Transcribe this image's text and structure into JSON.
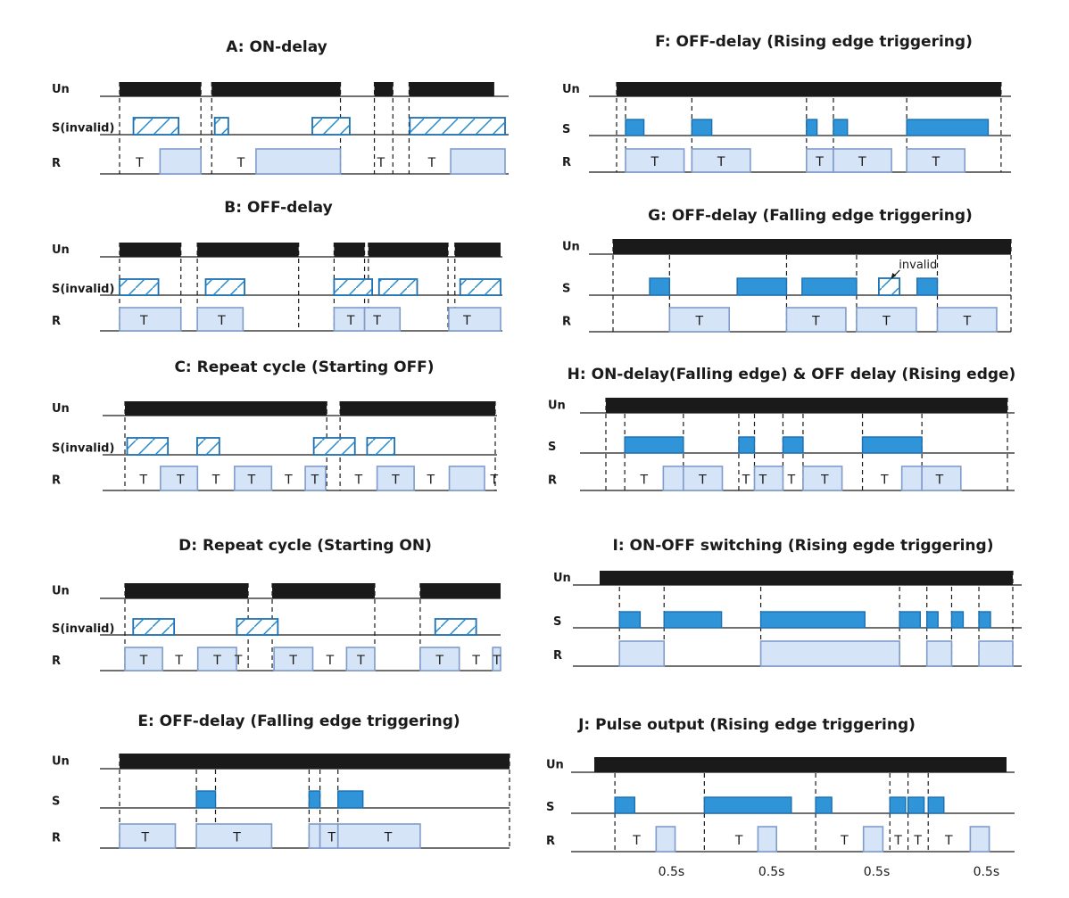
{
  "colors": {
    "un": "#1a1a1a",
    "s": "#2f95d8",
    "s_stroke": "#1d6fb0",
    "r_fill": "#d5e4f6",
    "r_stroke": "#7f9ccb",
    "hatch": "#1e88d1"
  },
  "rows": {
    "un": "Un",
    "s": "S",
    "s_invalid": "S(invalid)",
    "r": "R"
  },
  "t_label": "T",
  "panels": [
    {
      "id": "A",
      "title": "A: ON-delay",
      "s_label": "S(invalid)",
      "un": [
        [
          0.0,
          0.211
        ],
        [
          0.239,
          0.573
        ],
        [
          0.661,
          0.709
        ],
        [
          0.751,
          0.972
        ]
      ],
      "s": [
        [
          0.036,
          0.153,
          "h"
        ],
        [
          0.247,
          0.282,
          "h"
        ],
        [
          0.5,
          0.597,
          "h"
        ],
        [
          0.753,
          1.0,
          "h"
        ]
      ],
      "r": [
        [
          0.105,
          0.211
        ],
        [
          0.354,
          0.573
        ],
        [
          0.859,
          1.0
        ]
      ],
      "t": [
        0.052,
        0.315,
        0.678,
        0.81
      ],
      "dash": [
        0.0,
        0.211,
        0.239,
        0.573,
        0.661,
        0.709,
        0.751
      ]
    },
    {
      "id": "B",
      "title": "B: OFF-delay",
      "s_label": "S(invalid)",
      "un": [
        [
          0.0,
          0.161
        ],
        [
          0.204,
          0.47
        ],
        [
          0.563,
          0.643
        ],
        [
          0.653,
          0.862
        ],
        [
          0.88,
          1.0
        ]
      ],
      "s": [
        [
          0.0,
          0.102,
          "h"
        ],
        [
          0.226,
          0.328,
          "h"
        ],
        [
          0.563,
          0.663,
          "h"
        ],
        [
          0.681,
          0.781,
          "h"
        ],
        [
          0.894,
          1.0,
          "h"
        ]
      ],
      "r": [
        [
          0.0,
          0.161
        ],
        [
          0.204,
          0.324
        ],
        [
          0.563,
          0.643
        ],
        [
          0.643,
          0.736
        ],
        [
          0.864,
          1.0
        ]
      ],
      "t": [
        0.064,
        0.268,
        0.607,
        0.676,
        0.912
      ],
      "dash": [
        0.0,
        0.161,
        0.204,
        0.47,
        0.563,
        0.643,
        0.653,
        0.862,
        0.88
      ]
    },
    {
      "id": "C",
      "title": "C: Repeat cycle   (Starting OFF)",
      "s_label": "S(invalid)",
      "un": [
        [
          0.0,
          0.545
        ],
        [
          0.581,
          1.0
        ]
      ],
      "s": [
        [
          0.006,
          0.116,
          "h"
        ],
        [
          0.195,
          0.255,
          "h"
        ],
        [
          0.51,
          0.621,
          "h"
        ],
        [
          0.654,
          0.728,
          "h"
        ]
      ],
      "r": [
        [
          0.096,
          0.196
        ],
        [
          0.296,
          0.396
        ],
        [
          0.487,
          0.542
        ],
        [
          0.681,
          0.781
        ],
        [
          0.876,
          0.971
        ]
      ],
      "t": [
        0.05,
        0.15,
        0.246,
        0.342,
        0.442,
        0.513,
        0.631,
        0.731,
        0.826,
        0.997
      ],
      "dash": [
        0.0,
        0.545,
        0.581,
        1.0
      ]
    },
    {
      "id": "D",
      "title": "D: Repeat cycle (Starting ON)",
      "s_label": "S(invalid)",
      "un": [
        [
          0.0,
          0.328
        ],
        [
          0.392,
          0.665
        ],
        [
          0.786,
          1.0
        ]
      ],
      "s": [
        [
          0.022,
          0.131,
          "h"
        ],
        [
          0.298,
          0.407,
          "h"
        ],
        [
          0.826,
          0.935,
          "h"
        ]
      ],
      "r": [
        [
          0.0,
          0.1
        ],
        [
          0.194,
          0.297
        ],
        [
          0.397,
          0.5
        ],
        [
          0.59,
          0.665
        ],
        [
          0.786,
          0.89
        ],
        [
          0.979,
          1.0
        ]
      ],
      "t": [
        0.05,
        0.144,
        0.246,
        0.302,
        0.448,
        0.546,
        0.628,
        0.838,
        0.935,
        0.99
      ],
      "dash": [
        0.0,
        0.328,
        0.392,
        0.665,
        0.786
      ]
    },
    {
      "id": "E",
      "title": "E: OFF-delay (Falling edge triggering)",
      "s_label": "S",
      "un": [
        [
          0.0,
          1.0
        ]
      ],
      "s": [
        [
          0.197,
          0.246,
          "s"
        ],
        [
          0.486,
          0.514,
          "s"
        ],
        [
          0.56,
          0.624,
          "s"
        ]
      ],
      "r": [
        [
          0.0,
          0.143
        ],
        [
          0.197,
          0.39
        ],
        [
          0.486,
          0.514
        ],
        [
          0.514,
          0.56
        ],
        [
          0.56,
          0.771
        ]
      ],
      "t": [
        0.066,
        0.301,
        0.544,
        0.689
      ],
      "dash": [
        0.0,
        0.197,
        0.246,
        0.486,
        0.514,
        0.56,
        1.0
      ]
    },
    {
      "id": "F",
      "title": "F: OFF-delay (Rising edge triggering)",
      "s_label": "S",
      "un": [
        [
          0.0,
          0.986
        ]
      ],
      "s": [
        [
          0.023,
          0.07,
          "s"
        ],
        [
          0.193,
          0.244,
          "s"
        ],
        [
          0.487,
          0.514,
          "s"
        ],
        [
          0.556,
          0.592,
          "s"
        ],
        [
          0.744,
          0.953,
          "s"
        ]
      ],
      "r": [
        [
          0.023,
          0.173
        ],
        [
          0.193,
          0.343
        ],
        [
          0.487,
          0.556
        ],
        [
          0.556,
          0.705
        ],
        [
          0.744,
          0.893
        ]
      ],
      "t": [
        0.098,
        0.268,
        0.521,
        0.63,
        0.819
      ],
      "dash": [
        0.0,
        0.023,
        0.193,
        0.487,
        0.556,
        0.744,
        0.986
      ]
    },
    {
      "id": "G",
      "title": "G: OFF-delay (Falling edge triggering)",
      "s_label": "S",
      "un": [
        [
          0.0,
          1.0
        ]
      ],
      "s": [
        [
          0.092,
          0.142,
          "s"
        ],
        [
          0.312,
          0.436,
          "s"
        ],
        [
          0.475,
          0.612,
          "s"
        ],
        [
          0.668,
          0.72,
          "h"
        ],
        [
          0.764,
          0.815,
          "s"
        ]
      ],
      "r": [
        [
          0.142,
          0.292
        ],
        [
          0.436,
          0.585
        ],
        [
          0.612,
          0.762
        ],
        [
          0.815,
          0.964
        ]
      ],
      "t": [
        0.217,
        0.51,
        0.687,
        0.89
      ],
      "dash": [
        0.0,
        0.142,
        0.436,
        0.612,
        0.815,
        1.0
      ],
      "note": "invalid",
      "note_x": 0.698
    },
    {
      "id": "H",
      "title": "H: ON-delay(Falling edge) & OFF delay (Rising edge)",
      "s_label": "S",
      "un": [
        [
          0.0,
          1.0
        ]
      ],
      "s": [
        [
          0.047,
          0.193,
          "s"
        ],
        [
          0.331,
          0.37,
          "s"
        ],
        [
          0.441,
          0.491,
          "s"
        ],
        [
          0.639,
          0.787,
          "s"
        ]
      ],
      "r": [
        [
          0.143,
          0.193
        ],
        [
          0.193,
          0.29
        ],
        [
          0.37,
          0.441
        ],
        [
          0.491,
          0.588
        ],
        [
          0.737,
          0.787
        ],
        [
          0.787,
          0.884
        ]
      ],
      "t": [
        0.095,
        0.241,
        0.349,
        0.391,
        0.462,
        0.545,
        0.694,
        0.831
      ],
      "dash": [
        0.0,
        0.047,
        0.193,
        0.331,
        0.37,
        0.441,
        0.491,
        0.639,
        0.787,
        1.0
      ]
    },
    {
      "id": "I",
      "title": "I: ON-OFF switching (Rising egde triggering)",
      "s_label": "S",
      "un": [
        [
          0.0,
          1.0
        ]
      ],
      "s": [
        [
          0.048,
          0.098,
          "s"
        ],
        [
          0.156,
          0.295,
          "s"
        ],
        [
          0.39,
          0.642,
          "s"
        ],
        [
          0.726,
          0.776,
          "s"
        ],
        [
          0.792,
          0.819,
          "s"
        ],
        [
          0.852,
          0.88,
          "s"
        ],
        [
          0.918,
          0.946,
          "s"
        ]
      ],
      "r": [
        [
          0.048,
          0.156
        ],
        [
          0.39,
          0.726
        ],
        [
          0.792,
          0.852
        ],
        [
          0.918,
          1.0
        ]
      ],
      "t": [],
      "dash": [
        0.048,
        0.156,
        0.39,
        0.726,
        0.792,
        0.852,
        0.918,
        1.0
      ]
    },
    {
      "id": "J",
      "title": "J: Pulse output (Rising edge triggering)",
      "s_label": "S",
      "un": [
        [
          0.0,
          1.0
        ]
      ],
      "s": [
        [
          0.05,
          0.098,
          "s"
        ],
        [
          0.267,
          0.478,
          "s"
        ],
        [
          0.537,
          0.576,
          "s"
        ],
        [
          0.717,
          0.755,
          "s"
        ],
        [
          0.761,
          0.8,
          "s"
        ],
        [
          0.81,
          0.848,
          "s"
        ]
      ],
      "r": [
        [
          0.15,
          0.196
        ],
        [
          0.397,
          0.442
        ],
        [
          0.653,
          0.7
        ],
        [
          0.912,
          0.958
        ]
      ],
      "t": [
        0.103,
        0.351,
        0.607,
        0.737,
        0.785,
        0.86
      ],
      "dash": [
        0.05,
        0.267,
        0.537,
        0.717,
        0.761,
        0.81
      ],
      "pulse": "0.5s",
      "pulse_x": [
        0.187,
        0.43,
        0.685,
        0.951
      ]
    }
  ]
}
